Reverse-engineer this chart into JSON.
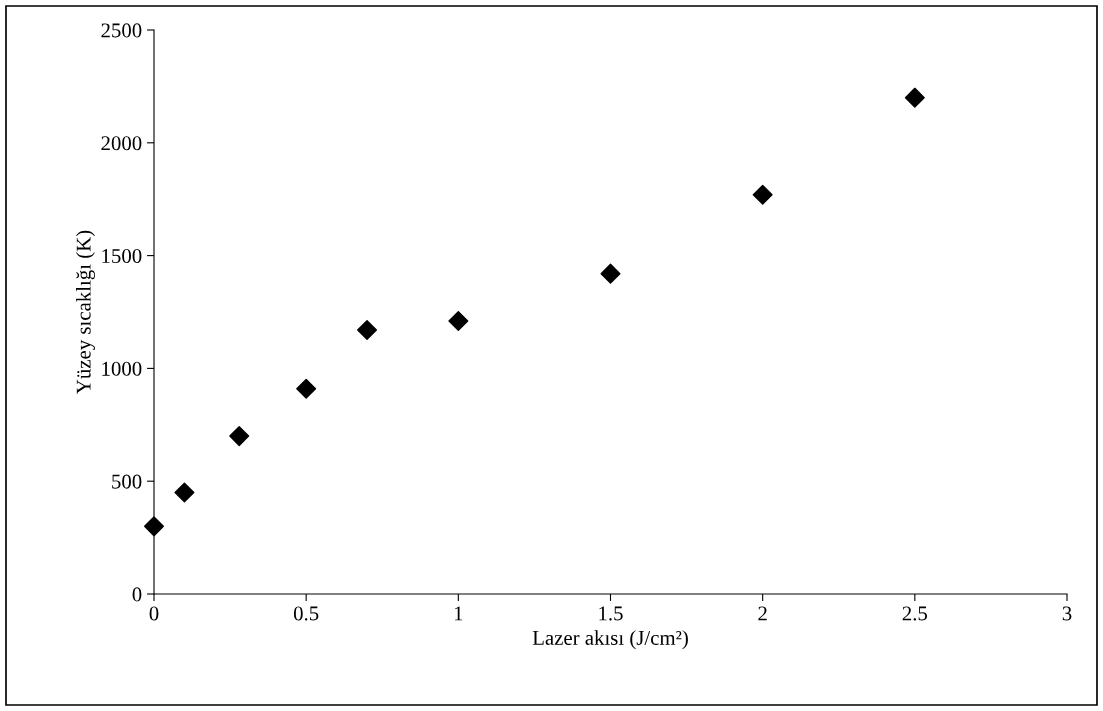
{
  "chart_data": {
    "type": "scatter",
    "xlabel": "Lazer akısı (J/cm²)",
    "ylabel": "Yüzey sıcaklığı (K)",
    "x": [
      0,
      0.1,
      0.28,
      0.5,
      0.7,
      1.0,
      1.5,
      2.0,
      2.5
    ],
    "series": [
      {
        "color": "#000000",
        "values": [
          300,
          450,
          700,
          910,
          1170,
          1210,
          1420,
          1770,
          2200
        ]
      }
    ],
    "xlim": [
      0,
      3
    ],
    "xticks": [
      0,
      0.5,
      1,
      1.5,
      2,
      2.5,
      3
    ],
    "ylim": [
      0,
      2500
    ],
    "yticks": [
      0,
      500,
      1000,
      1500,
      2000,
      2500
    ],
    "marker": "diamond",
    "grid": false,
    "legend": false
  }
}
